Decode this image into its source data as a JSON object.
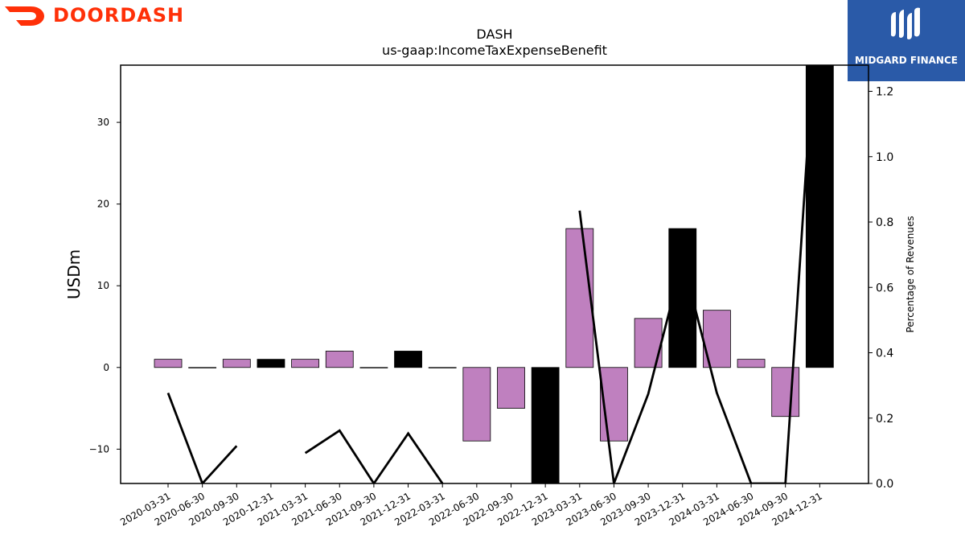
{
  "brand": {
    "left_wordmark": "DOORDASH",
    "left_color": "#ff3008",
    "right_wordmark": "MIDGARD FINANCE",
    "right_bg": "#2a5aa8"
  },
  "chart_data": {
    "type": "bar",
    "title": "DASH",
    "subtitle": "us-gaap:IncomeTaxExpenseBenefit",
    "ylabel": "USDm",
    "y2label": "Percentage of Revenues",
    "ylim": [
      -14.2,
      37
    ],
    "y2lim": [
      0.0,
      1.28
    ],
    "y_ticks": [
      -10,
      0,
      10,
      20,
      30
    ],
    "y2_ticks": [
      0.0,
      0.2,
      0.4,
      0.6,
      0.8,
      1.0,
      1.2
    ],
    "y_tick_labels": [
      "−10",
      "0",
      "10",
      "20",
      "30"
    ],
    "y2_tick_labels": [
      "0.0",
      "0.2",
      "0.4",
      "0.6",
      "0.8",
      "1.0",
      "1.2"
    ],
    "categories": [
      "2020-03-31",
      "2020-06-30",
      "2020-09-30",
      "2020-12-31",
      "2021-03-31",
      "2021-06-30",
      "2021-09-30",
      "2021-12-31",
      "2022-03-31",
      "2022-06-30",
      "2022-09-30",
      "2022-12-31",
      "2023-03-31",
      "2023-06-30",
      "2023-09-30",
      "2023-12-31",
      "2024-03-31",
      "2024-06-30",
      "2024-09-30",
      "2024-12-31"
    ],
    "series": [
      {
        "type": "bar",
        "values": [
          1,
          0,
          1,
          1,
          1,
          2,
          0,
          2,
          0,
          -9,
          -5,
          -17,
          17,
          -9,
          6,
          17,
          7,
          1,
          -6,
          37
        ],
        "colors": [
          "#bf80bf",
          "#bf80bf",
          "#bf80bf",
          "#000000",
          "#bf80bf",
          "#bf80bf",
          "#bf80bf",
          "#000000",
          "#bf80bf",
          "#bf80bf",
          "#bf80bf",
          "#000000",
          "#bf80bf",
          "#bf80bf",
          "#bf80bf",
          "#000000",
          "#bf80bf",
          "#bf80bf",
          "#bf80bf",
          "#000000"
        ]
      },
      {
        "type": "line",
        "axis": "right",
        "values": [
          0.277,
          0.0,
          0.115,
          null,
          0.093,
          0.162,
          0.0,
          0.153,
          0.0,
          null,
          null,
          null,
          0.835,
          0.0,
          0.274,
          0.685,
          0.277,
          0.0,
          0.0,
          1.6
        ],
        "color": "#000000"
      }
    ],
    "grid": false,
    "legend": "none"
  }
}
